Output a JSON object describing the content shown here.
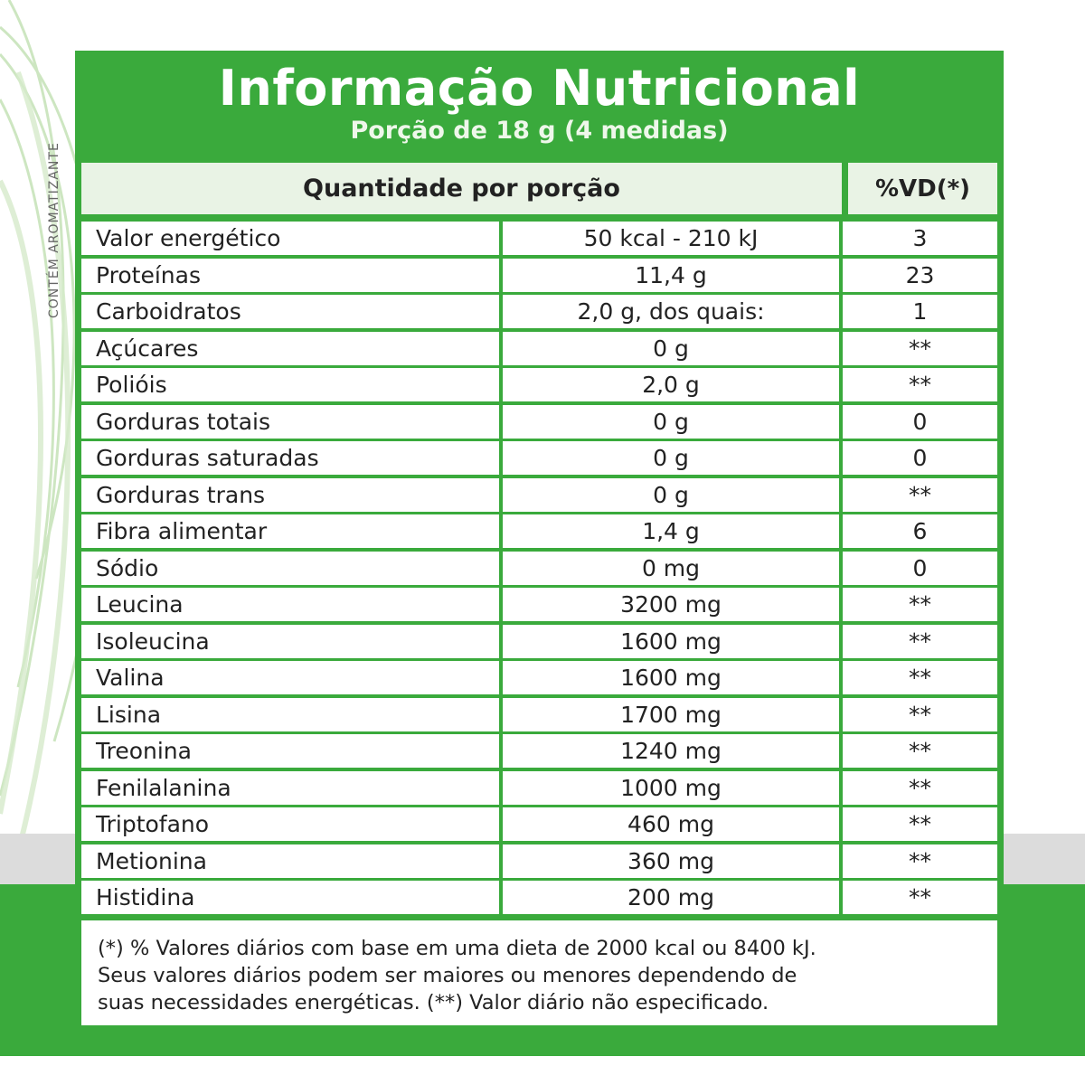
{
  "side_label": "CONTÉM AROMATIZANTE",
  "header": {
    "title": "Informação Nutricional",
    "subtitle": "Porção de 18 g (4 medidas)"
  },
  "columns": {
    "quantity": "Quantidade por porção",
    "vd": "%VD(*)"
  },
  "rows": [
    {
      "name": "Valor energético",
      "qty": "50 kcal - 210 kJ",
      "vd": "3"
    },
    {
      "name": "Proteínas",
      "qty": "11,4 g",
      "vd": "23"
    },
    {
      "name": "Carboidratos",
      "qty": "2,0 g, dos quais:",
      "vd": "1"
    },
    {
      "name": "Açúcares",
      "qty": "0 g",
      "vd": "**"
    },
    {
      "name": "Polióis",
      "qty": "2,0 g",
      "vd": "**"
    },
    {
      "name": "Gorduras totais",
      "qty": "0 g",
      "vd": "0"
    },
    {
      "name": "Gorduras saturadas",
      "qty": "0 g",
      "vd": "0"
    },
    {
      "name": "Gorduras trans",
      "qty": "0 g",
      "vd": "**"
    },
    {
      "name": "Fibra alimentar",
      "qty": "1,4 g",
      "vd": "6"
    },
    {
      "name": "Sódio",
      "qty": "0 mg",
      "vd": "0"
    },
    {
      "name": "Leucina",
      "qty": "3200 mg",
      "vd": "**"
    },
    {
      "name": "Isoleucina",
      "qty": "1600 mg",
      "vd": "**"
    },
    {
      "name": "Valina",
      "qty": "1600 mg",
      "vd": "**"
    },
    {
      "name": "Lisina",
      "qty": "1700 mg",
      "vd": "**"
    },
    {
      "name": "Treonina",
      "qty": "1240 mg",
      "vd": "**"
    },
    {
      "name": "Fenilalanina",
      "qty": "1000 mg",
      "vd": "**"
    },
    {
      "name": "Triptofano",
      "qty": "460 mg",
      "vd": "**"
    },
    {
      "name": "Metionina",
      "qty": "360 mg",
      "vd": "**"
    },
    {
      "name": "Histidina",
      "qty": "200 mg",
      "vd": "**"
    }
  ],
  "footnote": {
    "line1": "(*) % Valores diários com base em uma dieta de 2000 kcal ou 8400 kJ.",
    "line2": "Seus valores diários podem ser maiores ou menores dependendo de",
    "line3": "suas necessidades energéticas. (**) Valor diário não especificado."
  },
  "colors": {
    "brand_green": "#3aaa3c",
    "header_tint": "#e9f3e5"
  }
}
